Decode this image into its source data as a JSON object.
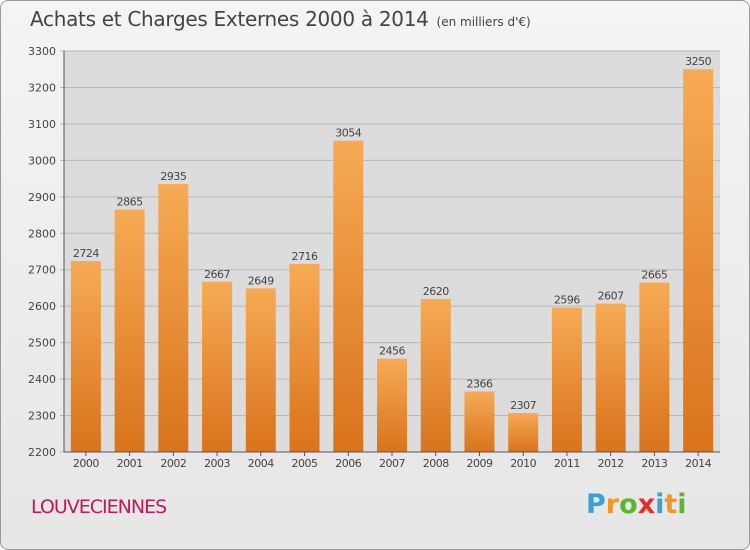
{
  "title": "Achats et Charges Externes 2000 à 2014",
  "subtitle": "(en milliers d'€)",
  "city": "LOUVECIENNES",
  "logo": {
    "letters": [
      "P",
      "r",
      "o",
      "x",
      "i",
      "t",
      "i"
    ],
    "colors": [
      "#3aa0d8",
      "#f29a1f",
      "#5cb531",
      "#e52e2e",
      "#3aa0d8",
      "#f29a1f",
      "#5cb531"
    ]
  },
  "colors": {
    "bar_top": "#f7aa55",
    "bar_bottom": "#d9731c",
    "plot_bg": "#dcdcdc",
    "grid": "#b8b8b8"
  },
  "chart_data": {
    "type": "bar",
    "title": "Achats et Charges Externes 2000 à 2014",
    "subtitle": "(en milliers d'€)",
    "categories": [
      "2000",
      "2001",
      "2002",
      "2003",
      "2004",
      "2005",
      "2006",
      "2007",
      "2008",
      "2009",
      "2010",
      "2011",
      "2012",
      "2013",
      "2014"
    ],
    "values": [
      2724,
      2865,
      2935,
      2667,
      2649,
      2716,
      3054,
      2456,
      2620,
      2366,
      2307,
      2596,
      2607,
      2665,
      3250
    ],
    "ylim": [
      2200,
      3300
    ],
    "yticks": [
      2200,
      2300,
      2400,
      2500,
      2600,
      2700,
      2800,
      2900,
      3000,
      3100,
      3200,
      3300
    ],
    "grid": true,
    "data_labels": true
  }
}
